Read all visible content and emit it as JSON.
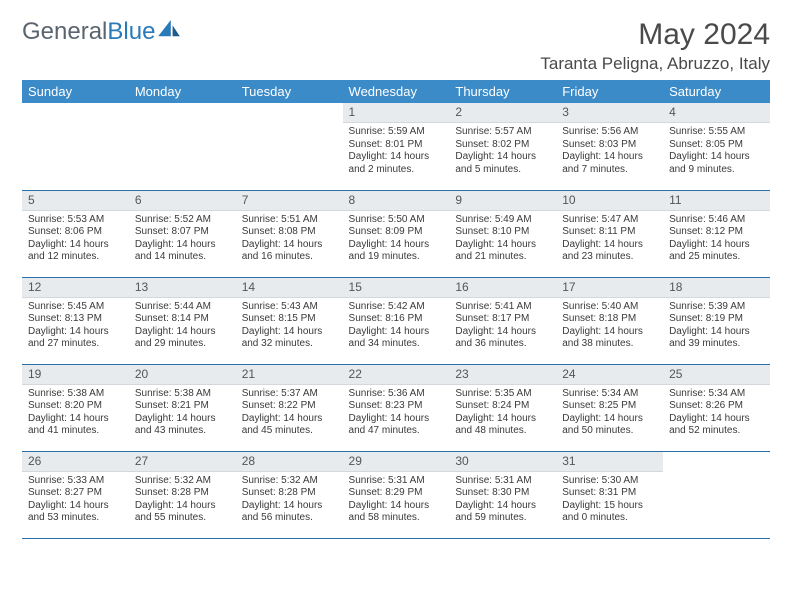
{
  "brand": {
    "part1": "General",
    "part2": "Blue"
  },
  "title": "May 2024",
  "location": "Taranta Peligna, Abruzzo, Italy",
  "colors": {
    "header_bg": "#3b8bc9",
    "header_text": "#ffffff",
    "daybar_bg": "#e8ebee",
    "border": "#2a6fa8",
    "brand_gray": "#5a6570",
    "brand_blue": "#2a7ab8"
  },
  "weekdays": [
    "Sunday",
    "Monday",
    "Tuesday",
    "Wednesday",
    "Thursday",
    "Friday",
    "Saturday"
  ],
  "layout": {
    "first_day_column_index": 3,
    "days_in_month": 31,
    "rows": 5,
    "cols": 7
  },
  "days": [
    {
      "n": 1,
      "sunrise": "5:59 AM",
      "sunset": "8:01 PM",
      "daylight": "14 hours and 2 minutes."
    },
    {
      "n": 2,
      "sunrise": "5:57 AM",
      "sunset": "8:02 PM",
      "daylight": "14 hours and 5 minutes."
    },
    {
      "n": 3,
      "sunrise": "5:56 AM",
      "sunset": "8:03 PM",
      "daylight": "14 hours and 7 minutes."
    },
    {
      "n": 4,
      "sunrise": "5:55 AM",
      "sunset": "8:05 PM",
      "daylight": "14 hours and 9 minutes."
    },
    {
      "n": 5,
      "sunrise": "5:53 AM",
      "sunset": "8:06 PM",
      "daylight": "14 hours and 12 minutes."
    },
    {
      "n": 6,
      "sunrise": "5:52 AM",
      "sunset": "8:07 PM",
      "daylight": "14 hours and 14 minutes."
    },
    {
      "n": 7,
      "sunrise": "5:51 AM",
      "sunset": "8:08 PM",
      "daylight": "14 hours and 16 minutes."
    },
    {
      "n": 8,
      "sunrise": "5:50 AM",
      "sunset": "8:09 PM",
      "daylight": "14 hours and 19 minutes."
    },
    {
      "n": 9,
      "sunrise": "5:49 AM",
      "sunset": "8:10 PM",
      "daylight": "14 hours and 21 minutes."
    },
    {
      "n": 10,
      "sunrise": "5:47 AM",
      "sunset": "8:11 PM",
      "daylight": "14 hours and 23 minutes."
    },
    {
      "n": 11,
      "sunrise": "5:46 AM",
      "sunset": "8:12 PM",
      "daylight": "14 hours and 25 minutes."
    },
    {
      "n": 12,
      "sunrise": "5:45 AM",
      "sunset": "8:13 PM",
      "daylight": "14 hours and 27 minutes."
    },
    {
      "n": 13,
      "sunrise": "5:44 AM",
      "sunset": "8:14 PM",
      "daylight": "14 hours and 29 minutes."
    },
    {
      "n": 14,
      "sunrise": "5:43 AM",
      "sunset": "8:15 PM",
      "daylight": "14 hours and 32 minutes."
    },
    {
      "n": 15,
      "sunrise": "5:42 AM",
      "sunset": "8:16 PM",
      "daylight": "14 hours and 34 minutes."
    },
    {
      "n": 16,
      "sunrise": "5:41 AM",
      "sunset": "8:17 PM",
      "daylight": "14 hours and 36 minutes."
    },
    {
      "n": 17,
      "sunrise": "5:40 AM",
      "sunset": "8:18 PM",
      "daylight": "14 hours and 38 minutes."
    },
    {
      "n": 18,
      "sunrise": "5:39 AM",
      "sunset": "8:19 PM",
      "daylight": "14 hours and 39 minutes."
    },
    {
      "n": 19,
      "sunrise": "5:38 AM",
      "sunset": "8:20 PM",
      "daylight": "14 hours and 41 minutes."
    },
    {
      "n": 20,
      "sunrise": "5:38 AM",
      "sunset": "8:21 PM",
      "daylight": "14 hours and 43 minutes."
    },
    {
      "n": 21,
      "sunrise": "5:37 AM",
      "sunset": "8:22 PM",
      "daylight": "14 hours and 45 minutes."
    },
    {
      "n": 22,
      "sunrise": "5:36 AM",
      "sunset": "8:23 PM",
      "daylight": "14 hours and 47 minutes."
    },
    {
      "n": 23,
      "sunrise": "5:35 AM",
      "sunset": "8:24 PM",
      "daylight": "14 hours and 48 minutes."
    },
    {
      "n": 24,
      "sunrise": "5:34 AM",
      "sunset": "8:25 PM",
      "daylight": "14 hours and 50 minutes."
    },
    {
      "n": 25,
      "sunrise": "5:34 AM",
      "sunset": "8:26 PM",
      "daylight": "14 hours and 52 minutes."
    },
    {
      "n": 26,
      "sunrise": "5:33 AM",
      "sunset": "8:27 PM",
      "daylight": "14 hours and 53 minutes."
    },
    {
      "n": 27,
      "sunrise": "5:32 AM",
      "sunset": "8:28 PM",
      "daylight": "14 hours and 55 minutes."
    },
    {
      "n": 28,
      "sunrise": "5:32 AM",
      "sunset": "8:28 PM",
      "daylight": "14 hours and 56 minutes."
    },
    {
      "n": 29,
      "sunrise": "5:31 AM",
      "sunset": "8:29 PM",
      "daylight": "14 hours and 58 minutes."
    },
    {
      "n": 30,
      "sunrise": "5:31 AM",
      "sunset": "8:30 PM",
      "daylight": "14 hours and 59 minutes."
    },
    {
      "n": 31,
      "sunrise": "5:30 AM",
      "sunset": "8:31 PM",
      "daylight": "15 hours and 0 minutes."
    }
  ],
  "labels": {
    "sunrise": "Sunrise:",
    "sunset": "Sunset:",
    "daylight": "Daylight:"
  }
}
